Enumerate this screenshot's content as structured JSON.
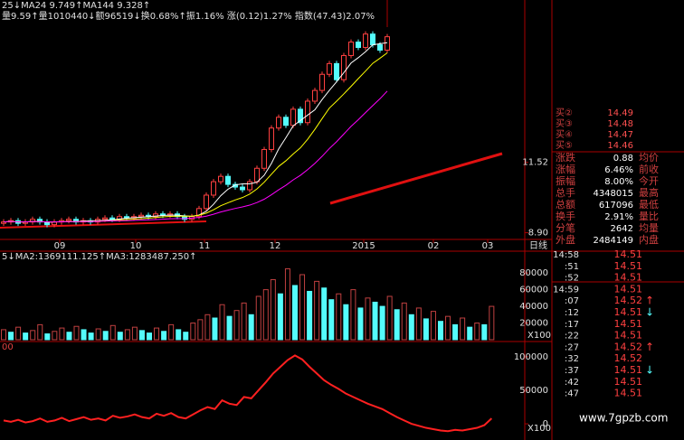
{
  "header": {
    "ma_line": "25↓MA24 9.749↑MA144 9.328↑",
    "info_line": "量9.59↑量1010440↓额96519↓换0.68%↑振1.16% 涨(0.12)1.27% 指数(47.43)2.07%"
  },
  "price_chart": {
    "type": "candlestick",
    "period": "日线",
    "closes": [
      9.3,
      9.35,
      9.25,
      9.3,
      9.4,
      9.3,
      9.2,
      9.3,
      9.35,
      9.4,
      9.3,
      9.35,
      9.3,
      9.4,
      9.45,
      9.4,
      9.5,
      9.45,
      9.5,
      9.55,
      9.5,
      9.6,
      9.55,
      9.6,
      9.5,
      9.4,
      9.5,
      9.8,
      10.3,
      10.8,
      11.0,
      10.7,
      10.6,
      10.5,
      10.8,
      11.3,
      12.0,
      12.8,
      13.2,
      12.9,
      13.5,
      13.0,
      13.8,
      14.2,
      14.8,
      15.2,
      14.6,
      15.5,
      16.0,
      15.8,
      16.3,
      15.9,
      15.7,
      16.2
    ],
    "ylim": [
      8.65,
      17.4
    ],
    "yticks": [
      11.52,
      {
        "value": 8.9,
        "label": "8.90"
      }
    ],
    "dates": [
      "09",
      "10",
      "11",
      "12",
      "2015",
      "02",
      "03"
    ]
  },
  "volume_chart": {
    "type": "bar",
    "legend": "5↓MA2:1369111.125↑MA3:1283487.250↑",
    "unit": "X100",
    "values": [
      12000,
      9000,
      15000,
      8000,
      11000,
      18000,
      7000,
      10000,
      14000,
      9000,
      16000,
      12000,
      8000,
      13000,
      10000,
      17000,
      9000,
      12000,
      15000,
      11000,
      8000,
      14000,
      10000,
      18000,
      12000,
      9000,
      20000,
      24000,
      30000,
      26000,
      42000,
      28000,
      35000,
      44000,
      30000,
      52000,
      60000,
      72000,
      55000,
      85000,
      65000,
      78000,
      58000,
      70000,
      62000,
      48000,
      55000,
      42000,
      60000,
      38000,
      50000,
      45000,
      40000,
      52000,
      36000,
      44000,
      30000,
      38000,
      25000,
      34000,
      22000,
      28000,
      18000,
      26000,
      15000,
      20000,
      18000,
      40000
    ],
    "ylim": [
      0,
      97500
    ],
    "yticks": [
      80000,
      60000,
      40000,
      20000
    ]
  },
  "indicator_chart": {
    "type": "line",
    "legend": "00",
    "unit": "X100",
    "values": [
      5000,
      3000,
      6000,
      2000,
      4000,
      8000,
      3000,
      5000,
      9000,
      4000,
      7000,
      10000,
      6000,
      8000,
      5000,
      12000,
      9000,
      11000,
      14000,
      10000,
      8000,
      15000,
      12000,
      16000,
      10000,
      8000,
      14000,
      20000,
      25000,
      22000,
      35000,
      30000,
      28000,
      40000,
      38000,
      50000,
      62000,
      75000,
      85000,
      95000,
      102000,
      96000,
      85000,
      75000,
      65000,
      58000,
      52000,
      45000,
      40000,
      35000,
      30000,
      26000,
      22000,
      16000,
      10000,
      5000,
      0,
      -3000,
      -6000,
      -8000,
      -10000,
      -11000,
      -9000,
      -10000,
      -8000,
      -6000,
      -2000,
      8000
    ],
    "ylim": [
      -12000,
      120000
    ],
    "yticks": [
      100000,
      50000,
      0
    ]
  },
  "order_book": [
    {
      "label": "买②",
      "price": 14.49
    },
    {
      "label": "买③",
      "price": 14.48
    },
    {
      "label": "买④",
      "price": 14.47
    },
    {
      "label": "买⑤",
      "price": 14.46
    }
  ],
  "stats": [
    {
      "name": "涨跌",
      "value": 0.88,
      "right": "均价"
    },
    {
      "name": "涨幅",
      "value": "6.46%",
      "right": "前收"
    },
    {
      "name": "振幅",
      "value": "8.00%",
      "right": "今开"
    },
    {
      "name": "总手",
      "value": 4348015,
      "right": "最高"
    },
    {
      "name": "总额",
      "value": 617096,
      "right": "最低"
    },
    {
      "name": "换手",
      "value": "2.91%",
      "right": "量比"
    },
    {
      "name": "分笔",
      "value": 2642,
      "right": "均量"
    },
    {
      "name": "外盘",
      "value": 2484149,
      "right": "内盘"
    }
  ],
  "trades": [
    {
      "time": "14:58",
      "price": 14.51
    },
    {
      "time": ":51",
      "price": 14.51
    },
    {
      "time": ":52",
      "price": 14.51
    },
    {
      "time": "14:59",
      "price": 14.51
    },
    {
      "time": ":07",
      "price": 14.52,
      "dir": "↑"
    },
    {
      "time": ":12",
      "price": 14.51,
      "dir": "↓"
    },
    {
      "time": ":17",
      "price": 14.51
    },
    {
      "time": ":22",
      "price": 14.51
    },
    {
      "time": ":27",
      "price": 14.52,
      "dir": "↑"
    },
    {
      "time": ":32",
      "price": 14.52
    },
    {
      "time": ":37",
      "price": 14.51,
      "dir": "↓"
    },
    {
      "time": ":42",
      "price": 14.51
    },
    {
      "time": ":47",
      "price": 14.51
    }
  ],
  "watermark": "www.7gpzb.com"
}
